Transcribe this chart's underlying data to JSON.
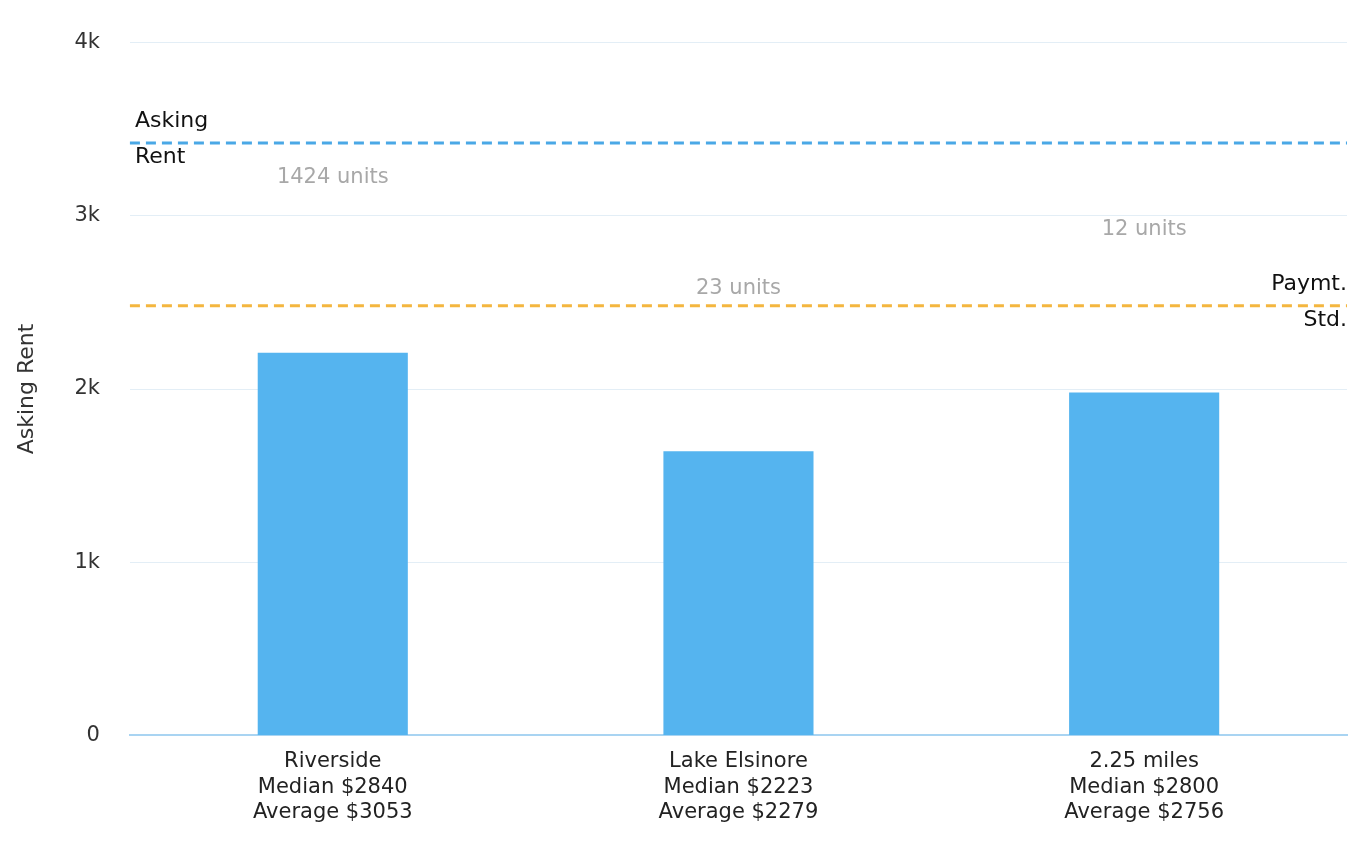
{
  "chart_data": {
    "type": "bar",
    "ylabel": "Asking Rent",
    "categories": [
      "Riverside\nMedian $2840\nAverage $3053",
      "Lake Elsinore\nMedian $2223\nAverage $2279",
      "2.25 miles\nMedian $2800\nAverage $2756"
    ],
    "values": [
      2210,
      1640,
      1980
    ],
    "color": "#55b4ef",
    "ylim": [
      0,
      4000
    ],
    "yticks": [
      {
        "value": 0,
        "label": "0"
      },
      {
        "value": 1000,
        "label": "1k"
      },
      {
        "value": 2000,
        "label": "2k"
      },
      {
        "value": 3000,
        "label": "3k"
      },
      {
        "value": 4000,
        "label": "4k"
      }
    ],
    "grid": "y",
    "legend": false,
    "ref_lines": [
      {
        "axis": "y",
        "value": 3420,
        "label": "Asking Rent",
        "color": "#4aa8e6",
        "line_style": "dashed"
      },
      {
        "axis": "y",
        "value": 2480,
        "label": "Paymt. Std.",
        "color": "#f4b63f",
        "line_style": "dashed"
      }
    ],
    "annotations": [
      "1424 units",
      "23 units",
      "12 units"
    ]
  }
}
